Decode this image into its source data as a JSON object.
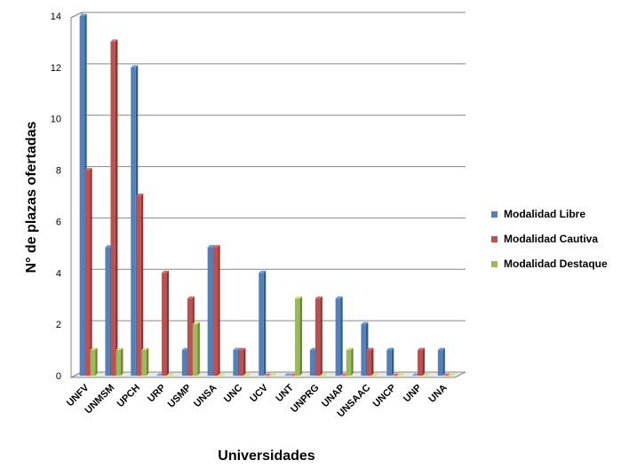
{
  "chart_data": {
    "type": "bar",
    "style": "3d-clustered-column",
    "categories": [
      "UNFV",
      "UNMSM",
      "UPCH",
      "URP",
      "USMP",
      "UNSA",
      "UNC",
      "UCV",
      "UNT",
      "UNPRG",
      "UNAP",
      "UNSAAC",
      "UNCP",
      "UNP",
      "UNA"
    ],
    "series": [
      {
        "name": "Modalidad Libre",
        "color": "#4F81BD",
        "values": [
          14,
          5,
          12,
          0,
          1,
          5,
          1,
          4,
          0,
          1,
          3,
          2,
          1,
          0,
          1
        ]
      },
      {
        "name": "Modalidad Cautiva",
        "color": "#C0504D",
        "values": [
          8,
          13,
          7,
          4,
          3,
          5,
          1,
          0,
          0,
          3,
          0,
          1,
          0,
          1,
          0
        ]
      },
      {
        "name": "Modalidad Destaque",
        "color": "#9BBB59",
        "values": [
          1,
          1,
          1,
          0,
          2,
          0,
          0,
          0,
          3,
          0,
          1,
          0,
          0,
          0,
          0
        ]
      }
    ],
    "xlabel": "Universidades",
    "ylabel": "N° de plazas ofertadas",
    "ylim": [
      0,
      14
    ],
    "yticks": [
      "0",
      "2",
      "4",
      "6",
      "8",
      "10",
      "12",
      "14"
    ],
    "grid": true,
    "legend_position": "right"
  }
}
